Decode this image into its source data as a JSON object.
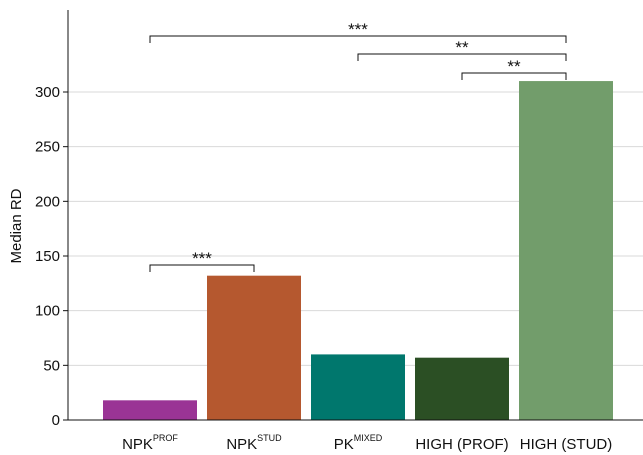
{
  "chart_data": {
    "type": "bar",
    "categories": [
      {
        "base": "NPK",
        "sup": "PROF"
      },
      {
        "base": "NPK",
        "sup": "STUD"
      },
      {
        "base": "PK",
        "sup": "MIXED"
      },
      {
        "base": "HIGH (PROF)",
        "sup": ""
      },
      {
        "base": "HIGH (STUD)",
        "sup": ""
      }
    ],
    "values": [
      18,
      132,
      60,
      57,
      310
    ],
    "colors": [
      "#9a3495",
      "#b5582f",
      "#00776d",
      "#2b4f24",
      "#729d6b"
    ],
    "ylabel": "Median RD",
    "ylim": [
      0,
      375
    ],
    "yticks": [
      0,
      50,
      100,
      150,
      200,
      250,
      300
    ],
    "grid": true,
    "significance": [
      {
        "from": 0,
        "to": 4,
        "label": "***"
      },
      {
        "from": 2,
        "to": 4,
        "label": "**"
      },
      {
        "from": 3,
        "to": 4,
        "label": "**"
      },
      {
        "from": 0,
        "to": 1,
        "label": "***"
      }
    ]
  }
}
